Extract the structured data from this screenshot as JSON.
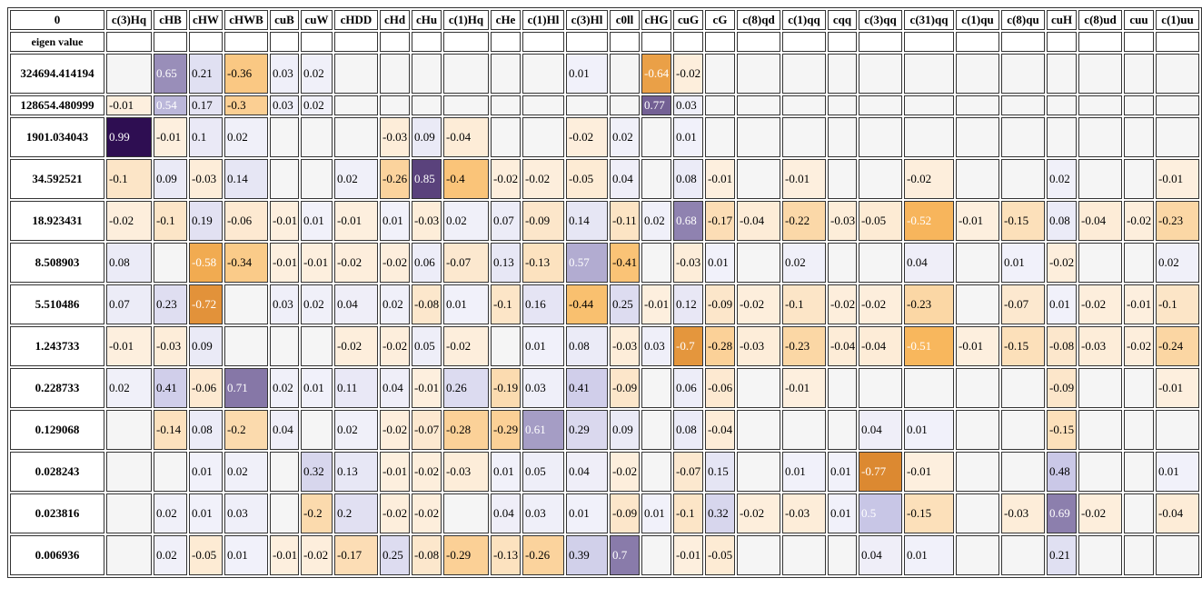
{
  "corner_label": "0",
  "eigen_label": "eigen value",
  "columns": [
    "c(3)Hq",
    "cHB",
    "cHW",
    "cHWB",
    "cuB",
    "cuW",
    "cHDD",
    "cHd",
    "cHu",
    "c(1)Hq",
    "cHe",
    "c(1)Hl",
    "c(3)Hl",
    "c0ll",
    "cHG",
    "cuG",
    "cG",
    "c(8)qd",
    "c(1)qq",
    "cqq",
    "c(3)qq",
    "c(31)qq",
    "c(1)qu",
    "c(8)qu",
    "cuH",
    "c(8)ud",
    "cuu",
    "c(1)uu"
  ],
  "rows": [
    {
      "eigen": "324694.414194",
      "values": [
        "",
        "0.65",
        "0.21",
        "-0.36",
        "0.03",
        "0.02",
        "",
        "",
        "",
        "",
        "",
        "",
        "0.01",
        "",
        "-0.64",
        "-0.02",
        "",
        "",
        "",
        "",
        "",
        "",
        "",
        "",
        "",
        "",
        "",
        ""
      ]
    },
    {
      "eigen": "128654.480999",
      "values": [
        "-0.01",
        "0.54",
        "0.17",
        "-0.3",
        "0.03",
        "0.02",
        "",
        "",
        "",
        "",
        "",
        "",
        "",
        "",
        "0.77",
        "0.03",
        "",
        "",
        "",
        "",
        "",
        "",
        "",
        "",
        "",
        "",
        "",
        ""
      ]
    },
    {
      "eigen": "1901.034043",
      "values": [
        "0.99",
        "-0.01",
        "0.1",
        "0.02",
        "",
        "",
        "",
        "-0.03",
        "0.09",
        "-0.04",
        "",
        "",
        "-0.02",
        "0.02",
        "",
        "0.01",
        "",
        "",
        "",
        "",
        "",
        "",
        "",
        "",
        "",
        "",
        "",
        ""
      ]
    },
    {
      "eigen": "34.592521",
      "values": [
        "-0.1",
        "0.09",
        "-0.03",
        "0.14",
        "",
        "",
        "0.02",
        "-0.26",
        "0.85",
        "-0.4",
        "-0.02",
        "-0.02",
        "-0.05",
        "0.04",
        "",
        "0.08",
        "-0.01",
        "",
        "-0.01",
        "",
        "",
        "-0.02",
        "",
        "",
        "0.02",
        "",
        "",
        "-0.01"
      ]
    },
    {
      "eigen": "18.923431",
      "values": [
        "-0.02",
        "-0.1",
        "0.19",
        "-0.06",
        "-0.01",
        "0.01",
        "-0.01",
        "0.01",
        "-0.03",
        "0.02",
        "0.07",
        "-0.09",
        "0.14",
        "-0.11",
        "0.02",
        "0.68",
        "-0.17",
        "-0.04",
        "-0.22",
        "-0.03",
        "-0.05",
        "-0.52",
        "-0.01",
        "-0.15",
        "0.08",
        "-0.04",
        "-0.02",
        "-0.23"
      ]
    },
    {
      "eigen": "8.508903",
      "values": [
        "0.08",
        "",
        "-0.58",
        "-0.34",
        "-0.01",
        "-0.01",
        "-0.02",
        "-0.02",
        "0.06",
        "-0.07",
        "0.13",
        "-0.13",
        "0.57",
        "-0.41",
        "",
        "-0.03",
        "0.01",
        "",
        "0.02",
        "",
        "",
        "0.04",
        "",
        "0.01",
        "-0.02",
        "",
        "",
        "0.02"
      ]
    },
    {
      "eigen": "5.510486",
      "values": [
        "0.07",
        "0.23",
        "-0.72",
        "",
        "0.03",
        "0.02",
        "0.04",
        "0.02",
        "-0.08",
        "0.01",
        "-0.1",
        "0.16",
        "-0.44",
        "0.25",
        "-0.01",
        "0.12",
        "-0.09",
        "-0.02",
        "-0.1",
        "-0.02",
        "-0.02",
        "-0.23",
        "",
        "-0.07",
        "0.01",
        "-0.02",
        "-0.01",
        "-0.1"
      ]
    },
    {
      "eigen": "1.243733",
      "values": [
        "-0.01",
        "-0.03",
        "0.09",
        "",
        "",
        "",
        "-0.02",
        "-0.02",
        "0.05",
        "-0.02",
        "",
        "0.01",
        "0.08",
        "-0.03",
        "0.03",
        "-0.7",
        "-0.28",
        "-0.03",
        "-0.23",
        "-0.04",
        "-0.04",
        "-0.51",
        "-0.01",
        "-0.15",
        "-0.08",
        "-0.03",
        "-0.02",
        "-0.24"
      ]
    },
    {
      "eigen": "0.228733",
      "values": [
        "0.02",
        "0.41",
        "-0.06",
        "0.71",
        "0.02",
        "0.01",
        "0.11",
        "0.04",
        "-0.01",
        "0.26",
        "-0.19",
        "0.03",
        "0.41",
        "-0.09",
        "",
        "0.06",
        "-0.06",
        "",
        "-0.01",
        "",
        "",
        "",
        "",
        "",
        "-0.09",
        "",
        "",
        "-0.01"
      ]
    },
    {
      "eigen": "0.129068",
      "values": [
        "",
        "-0.14",
        "0.08",
        "-0.2",
        "0.04",
        "",
        "0.02",
        "-0.02",
        "-0.07",
        "-0.28",
        "-0.29",
        "0.61",
        "0.29",
        "0.09",
        "",
        "0.08",
        "-0.04",
        "",
        "",
        "",
        "0.04",
        "0.01",
        "",
        "",
        "-0.15",
        "",
        "",
        ""
      ]
    },
    {
      "eigen": "0.028243",
      "values": [
        "",
        "",
        "0.01",
        "0.02",
        "",
        "0.32",
        "0.13",
        "-0.01",
        "-0.02",
        "-0.03",
        "0.01",
        "0.05",
        "0.04",
        "-0.02",
        "",
        "-0.07",
        "0.15",
        "",
        "0.01",
        "0.01",
        "-0.77",
        "-0.01",
        "",
        "",
        "0.48",
        "",
        "",
        "0.01"
      ]
    },
    {
      "eigen": "0.023816",
      "values": [
        "",
        "0.02",
        "0.01",
        "0.03",
        "",
        "-0.2",
        "0.2",
        "-0.02",
        "-0.02",
        "",
        "0.04",
        "0.03",
        "0.01",
        "-0.09",
        "0.01",
        "-0.1",
        "0.32",
        "-0.02",
        "-0.03",
        "0.01",
        "0.5",
        "-0.15",
        "",
        "-0.03",
        "0.69",
        "-0.02",
        "",
        "-0.04"
      ]
    },
    {
      "eigen": "0.006936",
      "values": [
        "",
        "0.02",
        "-0.05",
        "0.01",
        "-0.01",
        "-0.02",
        "-0.17",
        "0.25",
        "-0.08",
        "-0.29",
        "-0.13",
        "-0.26",
        "0.39",
        "0.7",
        "",
        "-0.01",
        "-0.05",
        "",
        "",
        "",
        "0.04",
        "0.01",
        "",
        "",
        "0.21",
        "",
        "",
        ""
      ]
    }
  ],
  "colors": {
    "empty": "#f5f5f5",
    "positive_max": "#2b0a4f",
    "negative_max": "#c4610a",
    "border": "#333333"
  }
}
